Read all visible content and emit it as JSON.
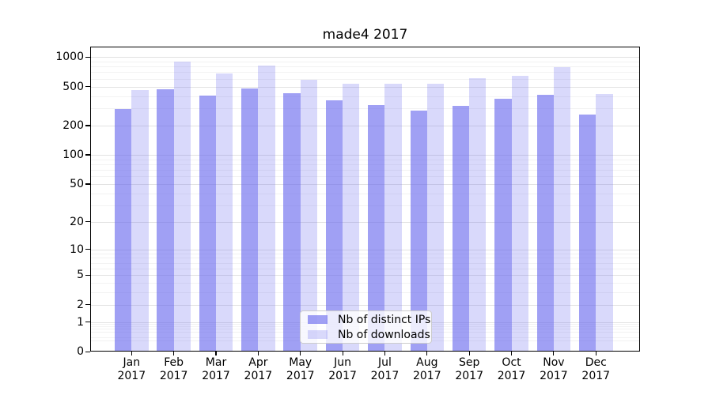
{
  "chart_data": {
    "type": "bar",
    "title": "made4 2017",
    "categories": [
      "Jan",
      "Feb",
      "Mar",
      "Apr",
      "May",
      "Jun",
      "Jul",
      "Aug",
      "Sep",
      "Oct",
      "Nov",
      "Dec"
    ],
    "category_year": "2017",
    "series": [
      {
        "name": "Nb of distinct IPs",
        "color": "#6666ee",
        "alpha": 0.62,
        "values": [
          296,
          470,
          406,
          475,
          425,
          360,
          325,
          285,
          315,
          376,
          412,
          260
        ]
      },
      {
        "name": "Nb of downloads",
        "color": "#6666ee",
        "alpha": 0.25,
        "values": [
          464,
          900,
          675,
          813,
          590,
          531,
          534,
          533,
          608,
          648,
          790,
          416
        ]
      }
    ],
    "yscale": "log1p",
    "ylim": [
      0,
      1270
    ],
    "yticks": [
      0,
      1,
      2,
      5,
      10,
      20,
      50,
      100,
      200,
      500,
      1000
    ],
    "grid": "horizontal, major and minor log lines",
    "legend_position": "lower center",
    "colors": {
      "grid_major": "#e2e2e2",
      "grid_minor": "#f2f2f2",
      "spine": "#000000",
      "background": "#ffffff"
    }
  }
}
